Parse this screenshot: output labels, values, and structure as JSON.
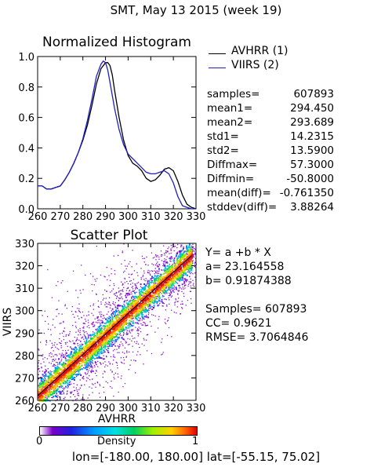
{
  "title": "SMT,  May 13 2015 (week 19)",
  "footer": "lon=[-180.00, 180.00] lat=[-55.15, 75.02]",
  "colorbar": {
    "label": "Density",
    "min_label": "0",
    "max_label": "1"
  },
  "legend": [
    {
      "label": "AVHRR (1)",
      "color": "#000000"
    },
    {
      "label": "VIIRS (2)",
      "color": "#2020c0"
    }
  ],
  "stats": [
    {
      "name": "samples=",
      "value": "607893"
    },
    {
      "name": "mean1=",
      "value": "294.450"
    },
    {
      "name": "mean2=",
      "value": "293.689"
    },
    {
      "name": "std1=",
      "value": "14.2315"
    },
    {
      "name": "std2=",
      "value": "13.5900"
    },
    {
      "name": "Diffmax=",
      "value": "57.3000"
    },
    {
      "name": "Diffmin=",
      "value": "-50.8000"
    },
    {
      "name": "mean(diff)=",
      "value": "-0.761350"
    },
    {
      "name": "stddev(diff)=",
      "value": "3.88264"
    }
  ],
  "regression": {
    "equation": "Y= a +b * X",
    "a": "a= 23.164558",
    "b": "b= 0.91874388",
    "samples": "Samples= 607893",
    "cc": "CC=  0.9621",
    "rmse": "RMSE= 3.7064846"
  },
  "chart_data": [
    {
      "type": "line",
      "title": "Normalized Histogram",
      "xlim": [
        260,
        330
      ],
      "ylim": [
        0,
        1
      ],
      "xticks": [
        "260",
        "270",
        "280",
        "290",
        "300",
        "310",
        "320",
        "330"
      ],
      "yticks": [
        "0.0",
        "0.2",
        "0.4",
        "0.6",
        "0.8",
        "1.0"
      ],
      "series": [
        {
          "name": "AVHRR (1)",
          "color": "#000000",
          "x": [
            260,
            262,
            264,
            266,
            268,
            270,
            272,
            274,
            276,
            278,
            280,
            282,
            284,
            286,
            288,
            290,
            291,
            292,
            293,
            294,
            296,
            298,
            300,
            302,
            304,
            306,
            308,
            310,
            312,
            314,
            316,
            318,
            320,
            322,
            324,
            326,
            328,
            330
          ],
          "y": [
            0.15,
            0.15,
            0.13,
            0.13,
            0.14,
            0.15,
            0.19,
            0.24,
            0.3,
            0.37,
            0.45,
            0.55,
            0.68,
            0.82,
            0.92,
            0.96,
            0.96,
            0.94,
            0.88,
            0.78,
            0.6,
            0.45,
            0.35,
            0.3,
            0.28,
            0.25,
            0.2,
            0.18,
            0.19,
            0.22,
            0.26,
            0.27,
            0.25,
            0.18,
            0.09,
            0.03,
            0.01,
            0.0
          ]
        },
        {
          "name": "VIIRS (2)",
          "color": "#2020c0",
          "x": [
            260,
            262,
            264,
            266,
            268,
            270,
            272,
            274,
            276,
            278,
            280,
            282,
            284,
            286,
            288,
            289,
            290,
            291,
            292,
            294,
            296,
            298,
            300,
            302,
            304,
            306,
            308,
            310,
            312,
            314,
            316,
            318,
            320,
            322,
            324,
            326,
            328,
            330
          ],
          "y": [
            0.15,
            0.15,
            0.13,
            0.13,
            0.14,
            0.15,
            0.19,
            0.24,
            0.3,
            0.37,
            0.46,
            0.58,
            0.72,
            0.87,
            0.95,
            0.97,
            0.96,
            0.91,
            0.83,
            0.66,
            0.52,
            0.42,
            0.36,
            0.33,
            0.3,
            0.27,
            0.24,
            0.23,
            0.23,
            0.24,
            0.25,
            0.23,
            0.17,
            0.08,
            0.02,
            0.01,
            0.0,
            0.0
          ]
        }
      ]
    },
    {
      "type": "heatmap",
      "title": "Scatter Plot",
      "xlabel": "AVHRR",
      "ylabel": "VIIRS",
      "xlim": [
        260,
        330
      ],
      "ylim": [
        260,
        330
      ],
      "xticks": [
        "260",
        "270",
        "280",
        "290",
        "300",
        "310",
        "320",
        "330"
      ],
      "yticks": [
        "260",
        "270",
        "280",
        "290",
        "300",
        "310",
        "320",
        "330"
      ],
      "fit": {
        "a": 23.164558,
        "b": 0.91874388
      }
    }
  ]
}
